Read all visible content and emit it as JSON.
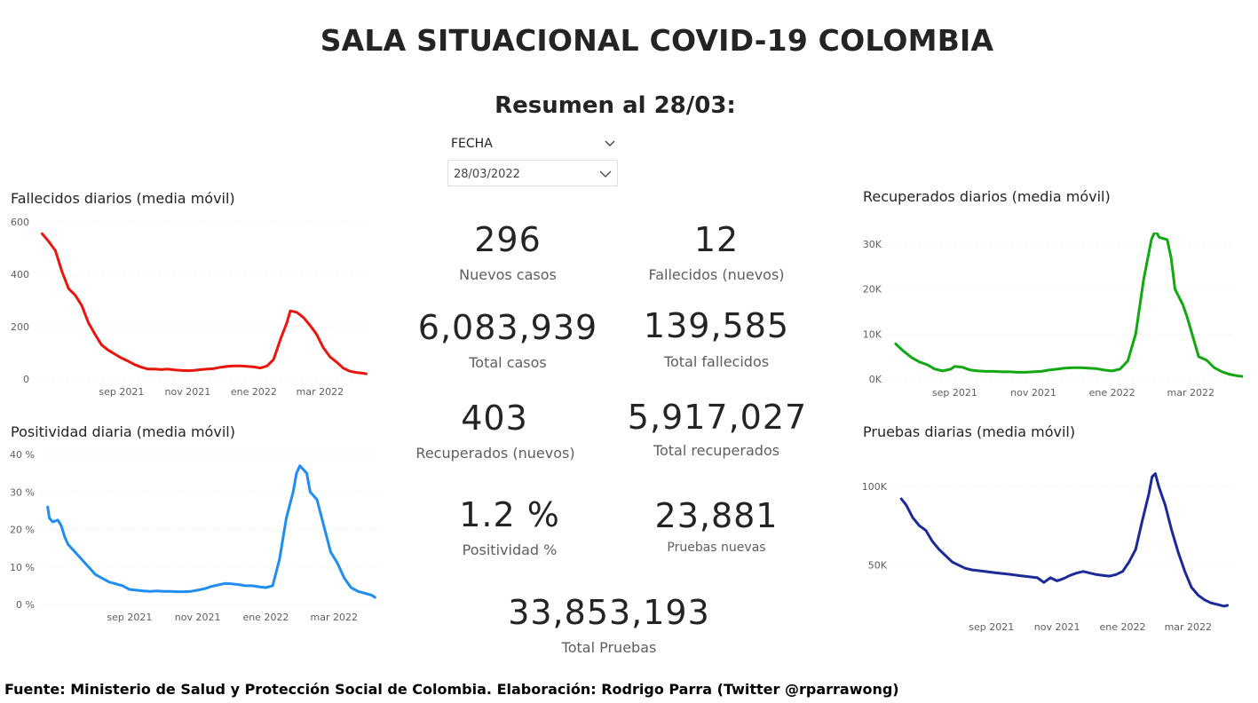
{
  "header": {
    "title": "SALA SITUACIONAL COVID-19 COLOMBIA",
    "subtitle": "Resumen al 28/03:"
  },
  "date_slicer": {
    "label": "FECHA",
    "value": "28/03/2022"
  },
  "kpis": [
    {
      "value": "296",
      "label": "Nuevos casos"
    },
    {
      "value": "12",
      "label": "Fallecidos (nuevos)"
    },
    {
      "value": "6,083,939",
      "label": "Total casos"
    },
    {
      "value": "139,585",
      "label": "Total fallecidos"
    },
    {
      "value": "403",
      "label": "Recuperados (nuevos)"
    },
    {
      "value": "5,917,027",
      "label": "Total recuperados"
    },
    {
      "value": "1.2 %",
      "label": "Positividad %"
    },
    {
      "value": "23,881",
      "label": "Pruebas nuevas"
    },
    {
      "value": "33,853,193",
      "label": "Total Pruebas"
    }
  ],
  "footer": "Fuente: Ministerio de Salud y Protección Social de Colombia. Elaboración: Rodrigo Parra (Twitter @rparrawong)",
  "chart_data": [
    {
      "id": "fallecidos",
      "type": "line",
      "title": "Fallecidos diarios (media móvil)",
      "color": "#e8160c",
      "x_ticks": [
        {
          "label": "sep 2021",
          "x": 1
        },
        {
          "label": "nov 2021",
          "x": 3
        },
        {
          "label": "ene 2022",
          "x": 5
        },
        {
          "label": "mar 2022",
          "x": 7
        }
      ],
      "y_ticks": [
        {
          "label": "0",
          "v": 0
        },
        {
          "label": "200",
          "v": 200
        },
        {
          "label": "400",
          "v": 400
        },
        {
          "label": "600",
          "v": 600
        }
      ],
      "xlim": [
        -1.6,
        8.6
      ],
      "ylim": [
        0,
        600
      ],
      "points": [
        [
          -1.4,
          555
        ],
        [
          -1.2,
          525
        ],
        [
          -1.0,
          490
        ],
        [
          -0.8,
          410
        ],
        [
          -0.6,
          345
        ],
        [
          -0.4,
          320
        ],
        [
          -0.2,
          280
        ],
        [
          0.0,
          215
        ],
        [
          0.2,
          170
        ],
        [
          0.4,
          130
        ],
        [
          0.6,
          110
        ],
        [
          0.8,
          95
        ],
        [
          1.0,
          80
        ],
        [
          1.2,
          68
        ],
        [
          1.4,
          55
        ],
        [
          1.6,
          45
        ],
        [
          1.8,
          38
        ],
        [
          2.0,
          38
        ],
        [
          2.2,
          36
        ],
        [
          2.4,
          38
        ],
        [
          2.6,
          35
        ],
        [
          2.8,
          33
        ],
        [
          3.0,
          32
        ],
        [
          3.2,
          33
        ],
        [
          3.4,
          36
        ],
        [
          3.6,
          38
        ],
        [
          3.8,
          40
        ],
        [
          4.0,
          45
        ],
        [
          4.2,
          48
        ],
        [
          4.4,
          50
        ],
        [
          4.6,
          50
        ],
        [
          4.8,
          48
        ],
        [
          5.0,
          46
        ],
        [
          5.2,
          42
        ],
        [
          5.4,
          50
        ],
        [
          5.6,
          75
        ],
        [
          5.8,
          150
        ],
        [
          6.0,
          215
        ],
        [
          6.1,
          260
        ],
        [
          6.3,
          255
        ],
        [
          6.5,
          235
        ],
        [
          6.7,
          205
        ],
        [
          6.9,
          170
        ],
        [
          7.1,
          120
        ],
        [
          7.3,
          85
        ],
        [
          7.5,
          65
        ],
        [
          7.7,
          42
        ],
        [
          7.9,
          30
        ],
        [
          8.1,
          25
        ],
        [
          8.3,
          22
        ],
        [
          8.4,
          20
        ]
      ]
    },
    {
      "id": "recuperados",
      "type": "line",
      "title": "Recuperados diarios (media móvil)",
      "color": "#12a812",
      "x_ticks": [
        {
          "label": "sep 2021",
          "x": 1
        },
        {
          "label": "nov 2021",
          "x": 3
        },
        {
          "label": "ene 2022",
          "x": 5
        },
        {
          "label": "mar 2022",
          "x": 7
        }
      ],
      "y_ticks": [
        {
          "label": "0K",
          "v": 0
        },
        {
          "label": "10K",
          "v": 10000
        },
        {
          "label": "20K",
          "v": 20000
        },
        {
          "label": "30K",
          "v": 30000
        }
      ],
      "xlim": [
        -0.7,
        8.1
      ],
      "ylim": [
        0,
        30000
      ],
      "points": [
        [
          -0.5,
          7800
        ],
        [
          -0.3,
          6200
        ],
        [
          -0.1,
          4800
        ],
        [
          0.1,
          3800
        ],
        [
          0.3,
          3200
        ],
        [
          0.5,
          2200
        ],
        [
          0.7,
          1800
        ],
        [
          0.9,
          2200
        ],
        [
          1.0,
          2800
        ],
        [
          1.2,
          2600
        ],
        [
          1.4,
          2000
        ],
        [
          1.6,
          1800
        ],
        [
          1.8,
          1700
        ],
        [
          2.0,
          1700
        ],
        [
          2.2,
          1600
        ],
        [
          2.4,
          1600
        ],
        [
          2.6,
          1500
        ],
        [
          2.8,
          1500
        ],
        [
          3.0,
          1600
        ],
        [
          3.2,
          1700
        ],
        [
          3.4,
          2000
        ],
        [
          3.6,
          2200
        ],
        [
          3.8,
          2400
        ],
        [
          4.0,
          2500
        ],
        [
          4.2,
          2500
        ],
        [
          4.4,
          2400
        ],
        [
          4.6,
          2300
        ],
        [
          4.8,
          2000
        ],
        [
          5.0,
          1800
        ],
        [
          5.2,
          2200
        ],
        [
          5.4,
          4000
        ],
        [
          5.6,
          10000
        ],
        [
          5.8,
          22000
        ],
        [
          6.0,
          31000
        ],
        [
          6.1,
          33000
        ],
        [
          6.2,
          31500
        ],
        [
          6.4,
          31000
        ],
        [
          6.5,
          27000
        ],
        [
          6.6,
          20000
        ],
        [
          6.8,
          16500
        ],
        [
          6.9,
          14000
        ],
        [
          7.0,
          11000
        ],
        [
          7.1,
          8000
        ],
        [
          7.2,
          5000
        ],
        [
          7.4,
          4200
        ],
        [
          7.6,
          2500
        ],
        [
          7.8,
          1600
        ],
        [
          8.0,
          1000
        ],
        [
          8.2,
          700
        ],
        [
          8.4,
          500
        ],
        [
          8.6,
          400
        ]
      ]
    },
    {
      "id": "positividad",
      "type": "line",
      "title": "Positividad diaria (media móvil)",
      "color": "#1f8ef0",
      "x_ticks": [
        {
          "label": "sep 2021",
          "x": 1
        },
        {
          "label": "nov 2021",
          "x": 3
        },
        {
          "label": "ene 2022",
          "x": 5
        },
        {
          "label": "mar 2022",
          "x": 7
        }
      ],
      "y_ticks": [
        {
          "label": "0 %",
          "v": 0
        },
        {
          "label": "10 %",
          "v": 10
        },
        {
          "label": "20 %",
          "v": 20
        },
        {
          "label": "30 %",
          "v": 30
        },
        {
          "label": "40 %",
          "v": 40
        }
      ],
      "xlim": [
        -1.6,
        8.4
      ],
      "ylim": [
        0,
        40
      ],
      "points": [
        [
          -1.4,
          26
        ],
        [
          -1.35,
          23
        ],
        [
          -1.25,
          22
        ],
        [
          -1.1,
          22.5
        ],
        [
          -1.0,
          21
        ],
        [
          -0.9,
          18
        ],
        [
          -0.8,
          16
        ],
        [
          -0.6,
          14
        ],
        [
          -0.4,
          12
        ],
        [
          -0.2,
          10
        ],
        [
          0.0,
          8
        ],
        [
          0.2,
          7
        ],
        [
          0.4,
          6
        ],
        [
          0.6,
          5.5
        ],
        [
          0.8,
          5
        ],
        [
          1.0,
          4
        ],
        [
          1.2,
          3.8
        ],
        [
          1.4,
          3.6
        ],
        [
          1.6,
          3.5
        ],
        [
          1.8,
          3.6
        ],
        [
          2.0,
          3.5
        ],
        [
          2.2,
          3.5
        ],
        [
          2.4,
          3.4
        ],
        [
          2.6,
          3.4
        ],
        [
          2.8,
          3.5
        ],
        [
          3.0,
          3.8
        ],
        [
          3.2,
          4.2
        ],
        [
          3.4,
          4.8
        ],
        [
          3.6,
          5.2
        ],
        [
          3.8,
          5.6
        ],
        [
          4.0,
          5.5
        ],
        [
          4.2,
          5.3
        ],
        [
          4.4,
          5.0
        ],
        [
          4.6,
          5.0
        ],
        [
          4.8,
          4.7
        ],
        [
          5.0,
          4.5
        ],
        [
          5.2,
          5.0
        ],
        [
          5.4,
          12
        ],
        [
          5.6,
          23
        ],
        [
          5.8,
          30
        ],
        [
          5.9,
          35
        ],
        [
          6.0,
          37
        ],
        [
          6.2,
          35
        ],
        [
          6.3,
          30
        ],
        [
          6.5,
          28
        ],
        [
          6.7,
          21
        ],
        [
          6.9,
          14
        ],
        [
          7.1,
          11
        ],
        [
          7.3,
          7
        ],
        [
          7.5,
          4.5
        ],
        [
          7.7,
          3.5
        ],
        [
          7.9,
          3.0
        ],
        [
          8.1,
          2.5
        ],
        [
          8.2,
          1.9
        ]
      ]
    },
    {
      "id": "pruebas",
      "type": "line",
      "title": "Pruebas diarias (media móvil)",
      "color": "#1c2a99",
      "x_ticks": [
        {
          "label": "sep 2021",
          "x": 1
        },
        {
          "label": "nov 2021",
          "x": 3
        },
        {
          "label": "ene 2022",
          "x": 5
        },
        {
          "label": "mar 2022",
          "x": 7
        }
      ],
      "y_ticks": [
        {
          "label": "50K",
          "v": 50000
        },
        {
          "label": "100K",
          "v": 100000
        }
      ],
      "xlim": [
        -2.0,
        8.4
      ],
      "ylim": [
        20000,
        110000
      ],
      "points": [
        [
          -1.75,
          92000
        ],
        [
          -1.6,
          88000
        ],
        [
          -1.4,
          80000
        ],
        [
          -1.2,
          75000
        ],
        [
          -1.0,
          72000
        ],
        [
          -0.8,
          65000
        ],
        [
          -0.6,
          60000
        ],
        [
          -0.4,
          56000
        ],
        [
          -0.2,
          52000
        ],
        [
          0.0,
          50000
        ],
        [
          0.2,
          48000
        ],
        [
          0.4,
          47000
        ],
        [
          0.6,
          46500
        ],
        [
          0.8,
          46000
        ],
        [
          1.0,
          45500
        ],
        [
          1.2,
          45000
        ],
        [
          1.4,
          44500
        ],
        [
          1.6,
          44000
        ],
        [
          1.8,
          43500
        ],
        [
          2.0,
          43000
        ],
        [
          2.2,
          42500
        ],
        [
          2.4,
          42000
        ],
        [
          2.6,
          39000
        ],
        [
          2.8,
          42000
        ],
        [
          3.0,
          40000
        ],
        [
          3.2,
          41500
        ],
        [
          3.4,
          43500
        ],
        [
          3.6,
          45000
        ],
        [
          3.8,
          46000
        ],
        [
          4.0,
          45000
        ],
        [
          4.2,
          44000
        ],
        [
          4.4,
          43500
        ],
        [
          4.6,
          43000
        ],
        [
          4.8,
          44000
        ],
        [
          5.0,
          46000
        ],
        [
          5.2,
          52000
        ],
        [
          5.4,
          60000
        ],
        [
          5.6,
          78000
        ],
        [
          5.8,
          95000
        ],
        [
          5.9,
          106000
        ],
        [
          6.0,
          108000
        ],
        [
          6.1,
          100000
        ],
        [
          6.3,
          88000
        ],
        [
          6.5,
          72000
        ],
        [
          6.7,
          58000
        ],
        [
          6.9,
          46000
        ],
        [
          7.1,
          36000
        ],
        [
          7.3,
          31000
        ],
        [
          7.5,
          28000
        ],
        [
          7.7,
          26000
        ],
        [
          7.9,
          25000
        ],
        [
          8.1,
          24000
        ],
        [
          8.2,
          24500
        ]
      ]
    }
  ]
}
